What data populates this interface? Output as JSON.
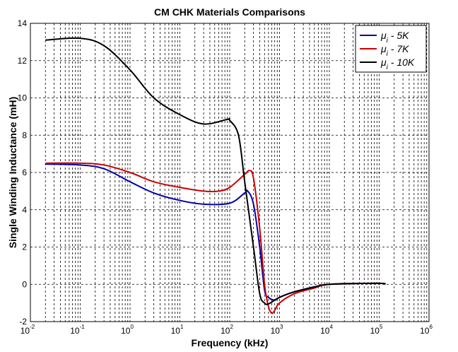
{
  "chart_data": {
    "type": "line",
    "title": "CM CHK  Materials Comparisons",
    "xlabel": "Frequency (kHz)",
    "ylabel": "Single Winding Inductance (mH)",
    "xscale": "log",
    "xlim": [
      0.01,
      1000000
    ],
    "ylim": [
      -2,
      14
    ],
    "xtick_labels": [
      {
        "base": "10",
        "exp": "-2"
      },
      {
        "base": "10",
        "exp": "-1"
      },
      {
        "base": "10",
        "exp": "0"
      },
      {
        "base": "10",
        "exp": "1"
      },
      {
        "base": "10",
        "exp": "2"
      },
      {
        "base": "10",
        "exp": "3"
      },
      {
        "base": "10",
        "exp": "4"
      },
      {
        "base": "10",
        "exp": "5"
      },
      {
        "base": "10",
        "exp": "6"
      }
    ],
    "ytick_labels": [
      "-2",
      "0",
      "2",
      "4",
      "6",
      "8",
      "10",
      "12",
      "14"
    ],
    "grid": true,
    "legend_position": "top-right",
    "series": [
      {
        "name": "μi - 5K",
        "legend_symbol": "μ",
        "legend_sub": "i",
        "legend_text": " - 5K",
        "color": "#0000aa",
        "x": [
          0.02,
          0.1,
          0.3,
          1,
          3,
          10,
          30,
          100,
          200,
          230,
          300,
          400,
          500,
          600,
          800,
          1000,
          2000,
          10000,
          100000,
          130000
        ],
        "y": [
          6.45,
          6.4,
          6.2,
          5.5,
          4.9,
          4.5,
          4.3,
          4.35,
          4.9,
          5.0,
          4.3,
          2.0,
          -0.3,
          -0.7,
          -0.85,
          -0.7,
          -0.4,
          0.0,
          0.05,
          0.0
        ]
      },
      {
        "name": "μi - 7K",
        "legend_symbol": "μ",
        "legend_sub": "i",
        "legend_text": " - 7K",
        "color": "#cc0000",
        "x": [
          0.02,
          0.1,
          0.3,
          1,
          3,
          10,
          30,
          60,
          100,
          200,
          250,
          300,
          400,
          500,
          600,
          700,
          800,
          1000,
          2000,
          5000,
          10000,
          100000,
          130000
        ],
        "y": [
          6.5,
          6.5,
          6.4,
          6.0,
          5.5,
          5.2,
          5.0,
          5.0,
          5.2,
          5.9,
          6.1,
          5.7,
          3.0,
          0.0,
          -1.2,
          -1.55,
          -1.4,
          -1.0,
          -0.5,
          -0.2,
          0.0,
          0.05,
          0.0
        ]
      },
      {
        "name": "μi - 10K",
        "legend_symbol": "μ",
        "legend_sub": "i",
        "legend_text": " - 10K",
        "color": "#000000",
        "x": [
          0.02,
          0.1,
          0.3,
          1,
          3,
          10,
          30,
          90,
          100,
          150,
          200,
          300,
          400,
          500,
          600,
          1000,
          2000,
          5000,
          10000,
          100000,
          130000
        ],
        "y": [
          13.1,
          13.2,
          12.8,
          11.5,
          10.0,
          9.1,
          8.6,
          8.85,
          8.8,
          8.0,
          5.5,
          2.0,
          -0.5,
          -1.0,
          -1.05,
          -0.7,
          -0.4,
          -0.15,
          0.0,
          0.05,
          0.0
        ]
      }
    ]
  }
}
